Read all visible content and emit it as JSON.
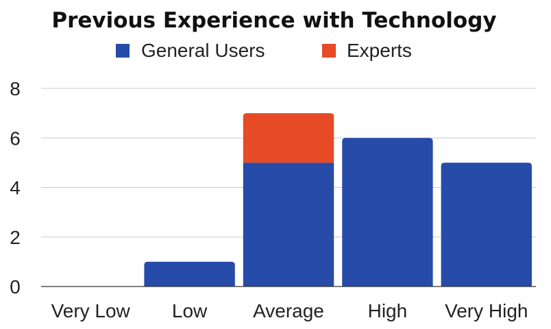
{
  "chart_data": {
    "type": "bar",
    "stacked": true,
    "title": "Previous Experience with Technology",
    "xlabel": "",
    "ylabel": "",
    "categories": [
      "Very Low",
      "Low",
      "Average",
      "High",
      "Very High"
    ],
    "series": [
      {
        "name": "General Users",
        "values": [
          0,
          1,
          5,
          6,
          5
        ],
        "color": "#274ba8"
      },
      {
        "name": "Experts",
        "values": [
          0,
          0,
          2,
          0,
          0
        ],
        "color": "#e64a26"
      }
    ],
    "ylim": [
      0,
      8
    ],
    "yticks": [
      "0",
      "2",
      "4",
      "6",
      "8"
    ],
    "grid": true,
    "legend_position": "top"
  }
}
